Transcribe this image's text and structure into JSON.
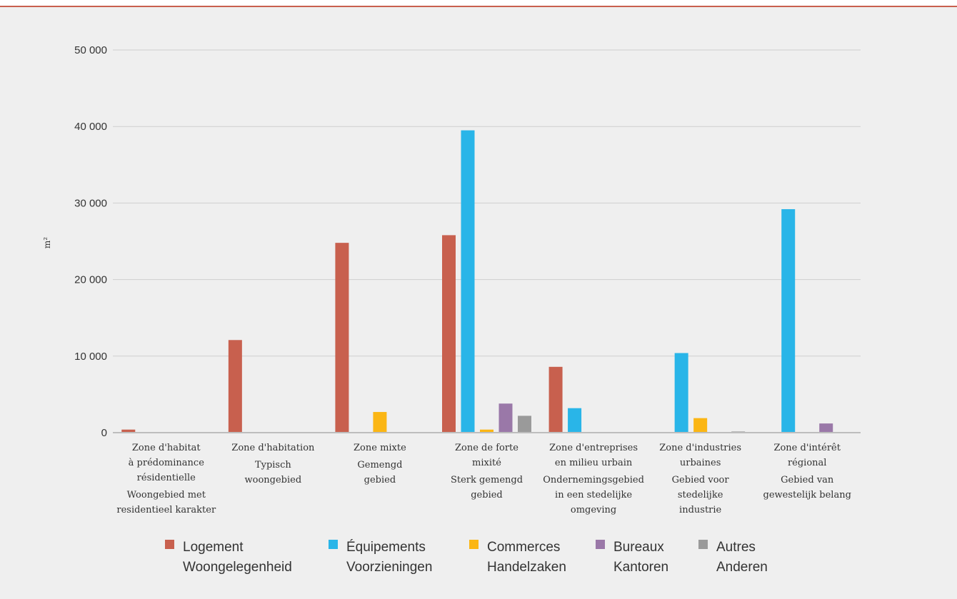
{
  "chart_data": {
    "type": "bar",
    "ylabel": "m²",
    "ylim": [
      0,
      50000
    ],
    "yticks": [
      {
        "value": 0,
        "label": "0"
      },
      {
        "value": 10000,
        "label": "10 000"
      },
      {
        "value": 20000,
        "label": "20 000"
      },
      {
        "value": 30000,
        "label": "30 000"
      },
      {
        "value": 40000,
        "label": "40 000"
      },
      {
        "value": 50000,
        "label": "50 000"
      }
    ],
    "grid": true,
    "legend_position": "bottom",
    "categories": [
      {
        "fr": [
          "Zone d'habitat",
          "à prédominance",
          "résidentielle"
        ],
        "nl": [
          "Woongebied met",
          "residentieel karakter"
        ]
      },
      {
        "fr": [
          "Zone d'habitation"
        ],
        "nl": [
          "Typisch",
          "woongebied"
        ]
      },
      {
        "fr": [
          "Zone mixte"
        ],
        "nl": [
          "Gemengd",
          "gebied"
        ]
      },
      {
        "fr": [
          "Zone de forte",
          "mixité"
        ],
        "nl": [
          "Sterk gemengd",
          "gebied"
        ]
      },
      {
        "fr": [
          "Zone d'entreprises",
          "en milieu urbain"
        ],
        "nl": [
          "Ondernemingsgebied",
          "in een stedelijke",
          "omgeving"
        ]
      },
      {
        "fr": [
          "Zone d'industries",
          "urbaines"
        ],
        "nl": [
          "Gebied voor",
          "stedelijke",
          "industrie"
        ]
      },
      {
        "fr": [
          "Zone d'intérêt",
          "régional"
        ],
        "nl": [
          "Gebied van",
          "gewestelijk belang"
        ]
      }
    ],
    "series": [
      {
        "name": "Logement",
        "name2": "Woongelegenheid",
        "color": "#c8604e",
        "values": [
          400,
          12100,
          24800,
          25800,
          8600,
          0,
          0
        ]
      },
      {
        "name": "Équipements",
        "name2": "Voorzieningen",
        "color": "#29b5e8",
        "values": [
          0,
          0,
          0,
          39500,
          3200,
          10400,
          29200
        ]
      },
      {
        "name": "Commerces",
        "name2": "Handelzaken",
        "color": "#fbb614",
        "values": [
          0,
          0,
          2700,
          400,
          0,
          1900,
          0
        ]
      },
      {
        "name": "Bureaux",
        "name2": "Kantoren",
        "color": "#9a78a8",
        "values": [
          0,
          0,
          0,
          3800,
          0,
          0,
          1200
        ]
      },
      {
        "name": "Autres",
        "name2": "Anderen",
        "color": "#9a9a9a",
        "values": [
          0,
          0,
          0,
          2200,
          0,
          150,
          0
        ]
      }
    ]
  }
}
